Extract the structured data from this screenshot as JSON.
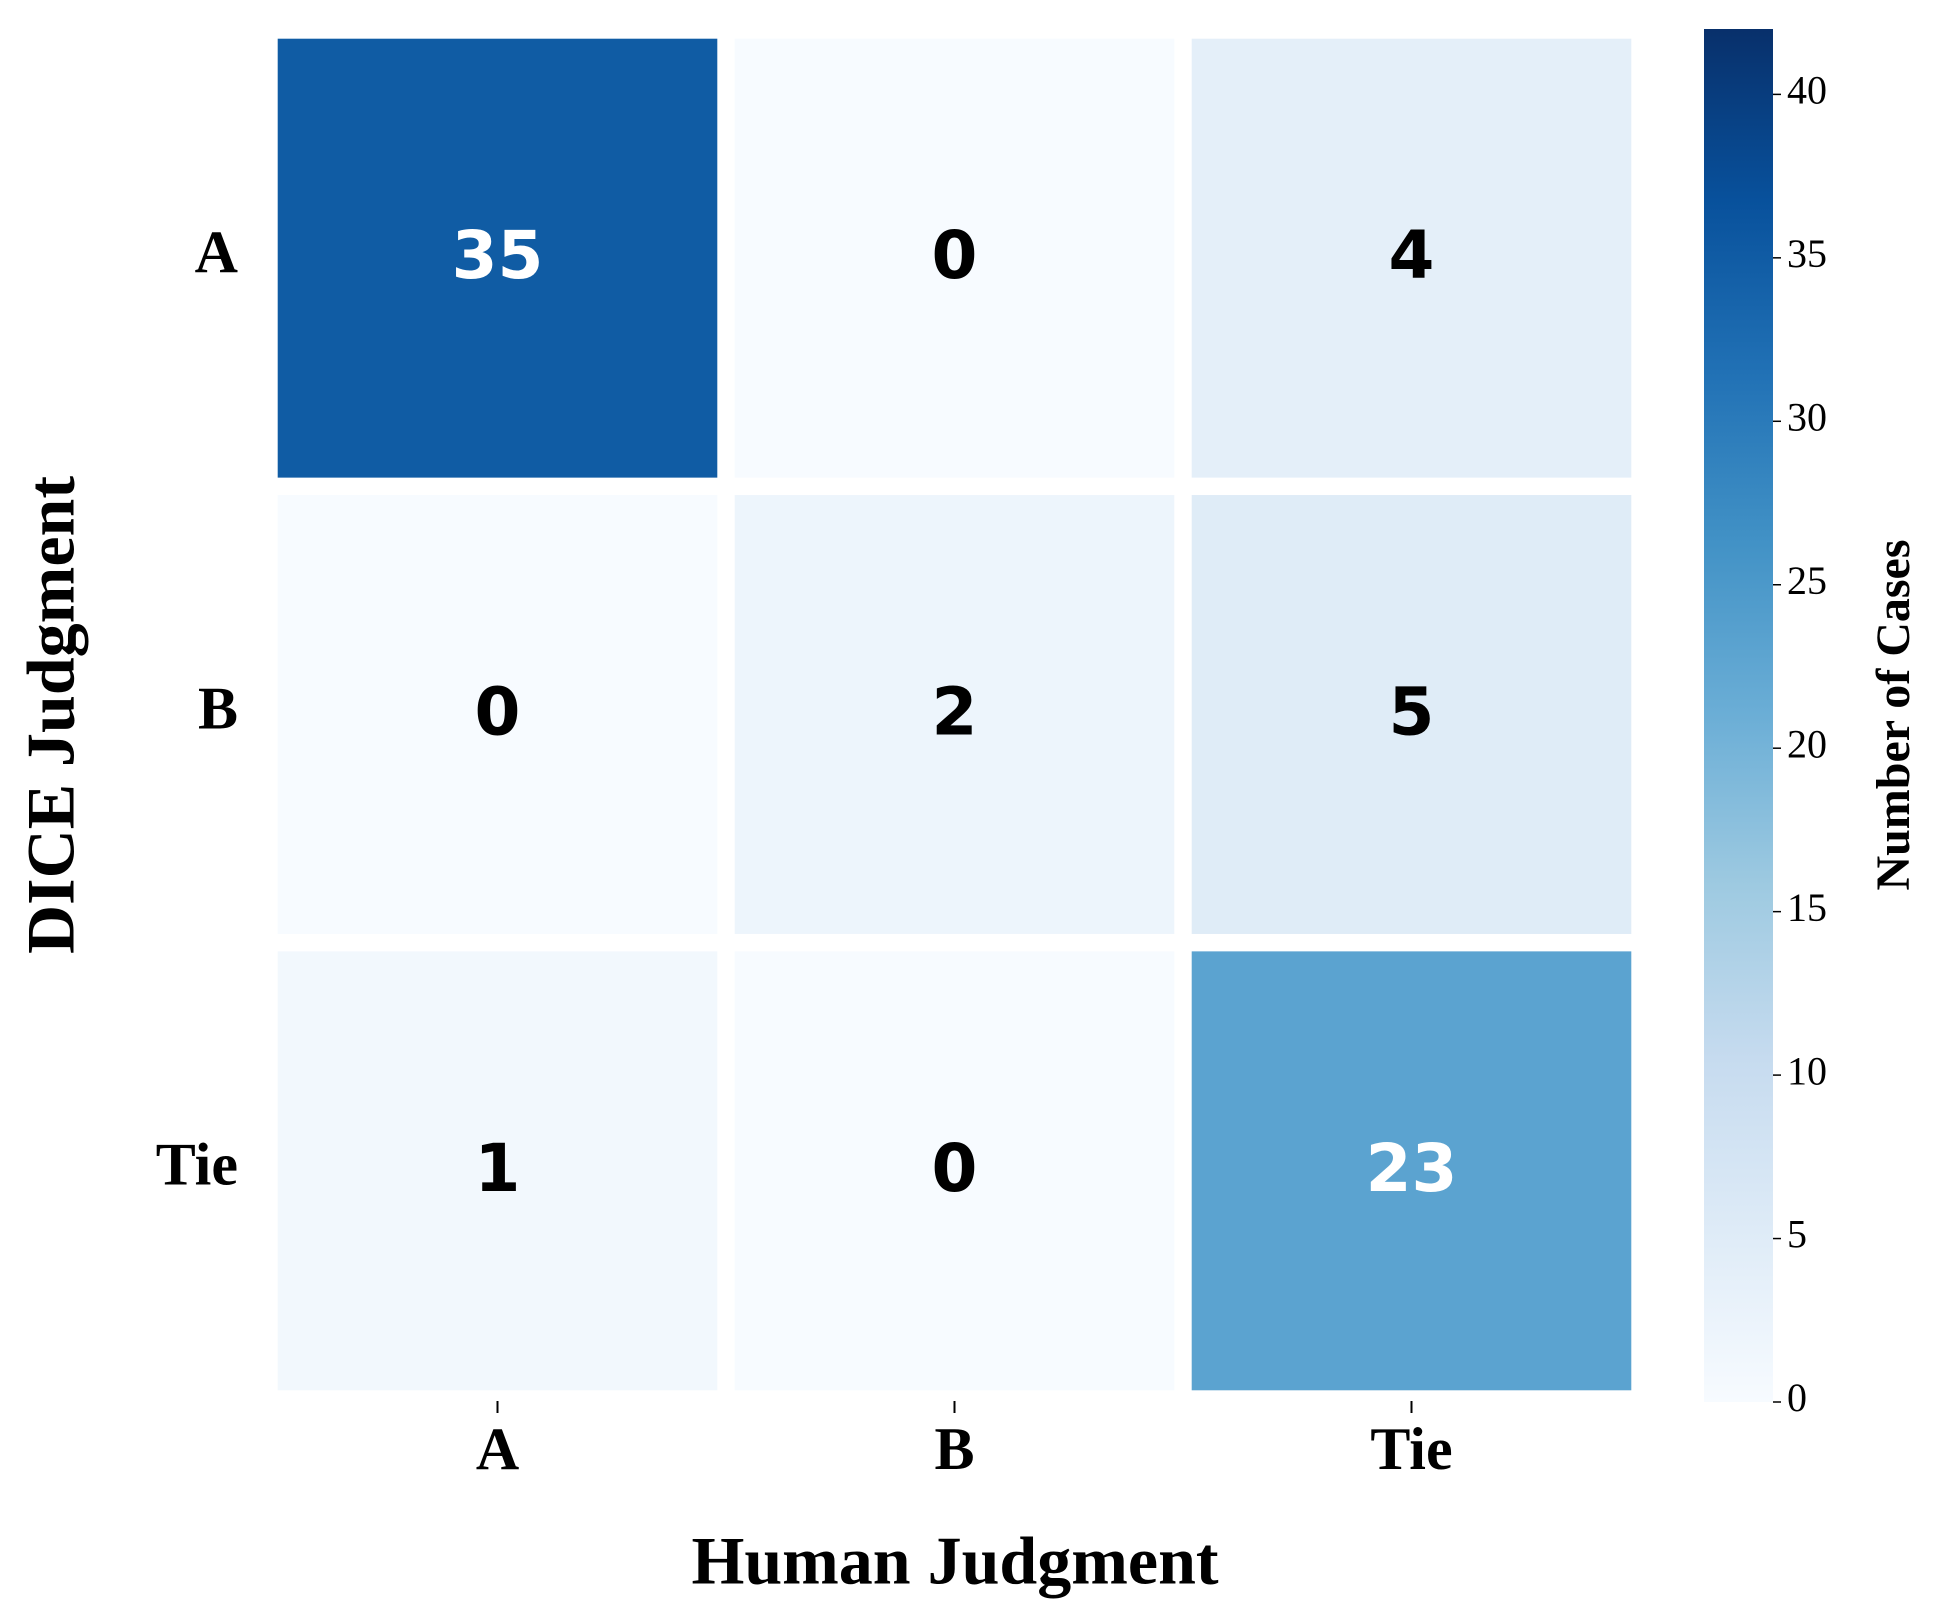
{
  "chart_data": {
    "type": "heatmap",
    "x_categories": [
      "A",
      "B",
      "Tie"
    ],
    "y_categories": [
      "A",
      "B",
      "Tie"
    ],
    "values": [
      [
        35,
        0,
        4
      ],
      [
        0,
        2,
        5
      ],
      [
        1,
        0,
        23
      ]
    ],
    "xlabel": "Human Judgment",
    "ylabel": "DICE Judgment",
    "colormap": "Blues",
    "colorbar": {
      "label": "Number of Cases",
      "lim": [
        0,
        42
      ],
      "ticks": [
        0,
        5,
        10,
        15,
        20,
        25,
        30,
        35,
        40
      ]
    }
  }
}
